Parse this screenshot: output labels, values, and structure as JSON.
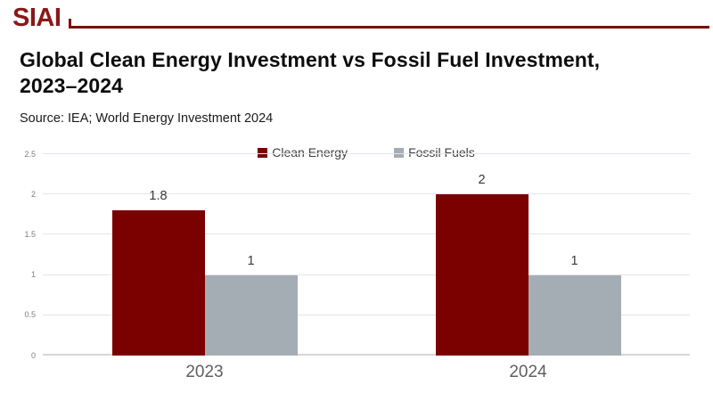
{
  "header": {
    "logo": "SIAI"
  },
  "title": {
    "line1": "Global Clean Energy Investment vs Fossil Fuel Investment,",
    "line2": "2023–2024"
  },
  "source": "Source: IEA; World Energy Investment 2024",
  "legend": {
    "items": [
      {
        "label": "Clean Energy",
        "color": "#7B0101"
      },
      {
        "label": "Fossil Fuels",
        "color": "#A4ADB3"
      }
    ]
  },
  "colors": {
    "brand_red": "#8B1818",
    "rule_red": "#7A0D0D",
    "clean_energy_bar": "#7B0101",
    "fossil_fuels_bar": "#A4ADB3",
    "gridline": "#e4e4ec",
    "axis_line": "#d6d6da"
  },
  "chart_data": {
    "type": "bar",
    "title": "Global Clean Energy Investment vs Fossil Fuel Investment, 2023–2024",
    "categories": [
      "2023",
      "2024"
    ],
    "series": [
      {
        "name": "Clean Energy",
        "color": "#7B0101",
        "values": [
          1.8,
          2
        ],
        "value_labels": [
          "1.8",
          "2"
        ]
      },
      {
        "name": "Fossil Fuels",
        "color": "#A4ADB3",
        "values": [
          1,
          1
        ],
        "value_labels": [
          "1",
          "1"
        ]
      }
    ],
    "xlabel": "",
    "ylabel": "",
    "ylim": [
      0,
      2.5
    ],
    "yticks": [
      0,
      0.5,
      1,
      1.5,
      2,
      2.5
    ],
    "ytick_labels": [
      "0",
      "0.5",
      "1",
      "1.5",
      "2",
      "2.5"
    ],
    "grid": true,
    "legend_position": "top-center"
  }
}
